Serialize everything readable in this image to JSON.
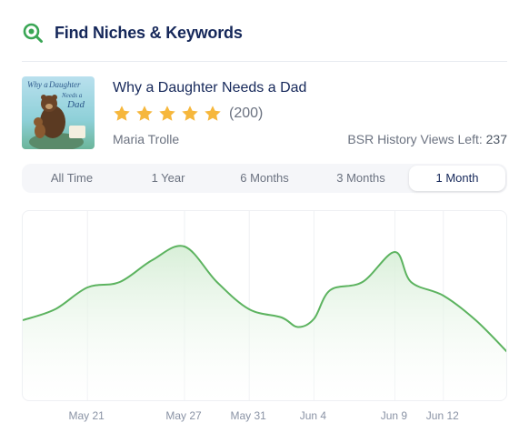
{
  "header": {
    "title": "Find Niches & Keywords",
    "icon": "search-chart-icon",
    "accent": "#3aa655"
  },
  "book": {
    "title": "Why a Daughter Needs a Dad",
    "rating": 5,
    "reviews": "(200)",
    "author": "Maria Trolle",
    "bsr_label": "BSR History Views Left:",
    "bsr_value": "237",
    "cover": {
      "title_line1": "Why a",
      "title_line2": "Daughter",
      "title_line3": "Needs a",
      "title_line4": "Dad"
    }
  },
  "tabs": [
    {
      "label": "All Time",
      "active": false
    },
    {
      "label": "1 Year",
      "active": false
    },
    {
      "label": "6 Months",
      "active": false
    },
    {
      "label": "3 Months",
      "active": false
    },
    {
      "label": "1 Month",
      "active": true
    }
  ],
  "colors": {
    "line": "#5cb35f",
    "fill": "#e3f3e2",
    "grid": "#eef0f3",
    "star": "#f6b73c"
  },
  "chart_data": {
    "type": "area",
    "title": "",
    "xlabel": "",
    "ylabel": "",
    "x_ticks": [
      "May 21",
      "May 27",
      "May 31",
      "Jun 4",
      "Jun 9",
      "Jun 12"
    ],
    "x": [
      "May 17",
      "May 19",
      "May 21",
      "May 23",
      "May 25",
      "May 27",
      "May 29",
      "May 31",
      "Jun 2",
      "Jun 3",
      "Jun 4",
      "Jun 5",
      "Jun 7",
      "Jun 9",
      "Jun 10",
      "Jun 12",
      "Jun 14",
      "Jun 16"
    ],
    "series": [
      {
        "name": "",
        "values": [
          60,
          68,
          84,
          88,
          104,
          114,
          88,
          68,
          62,
          55,
          61,
          82,
          88,
          110,
          88,
          78,
          60,
          36
        ]
      }
    ],
    "ylim": [
      0,
      140
    ],
    "grid": "vertical",
    "legend": "none"
  }
}
